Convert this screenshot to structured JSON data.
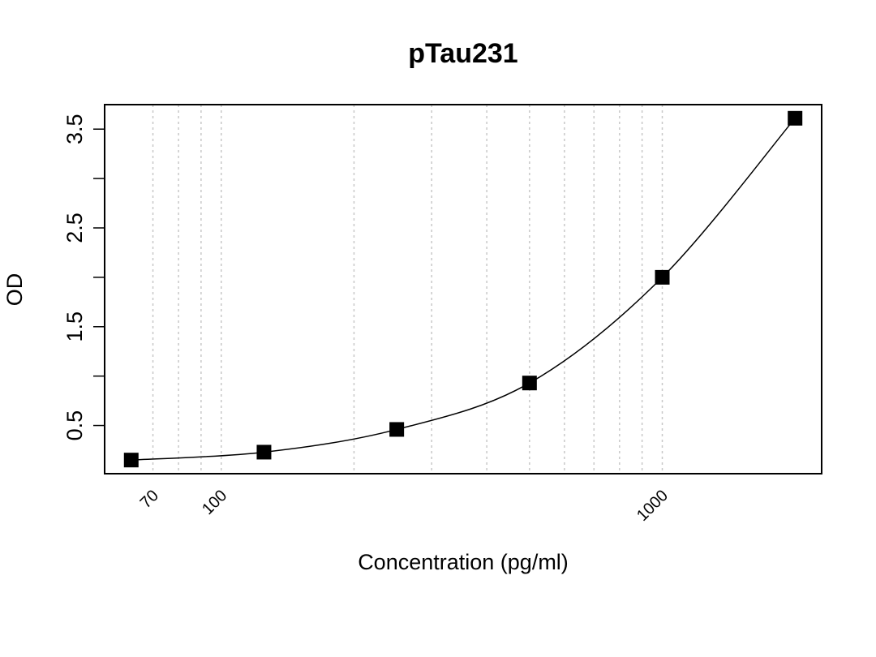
{
  "chart_data": {
    "type": "scatter",
    "title": "pTau231",
    "x_label": "Concentration (pg/ml)",
    "y_label": "OD",
    "x_scale": "log",
    "fit_line": true,
    "color": "#000000",
    "x": [
      62.5,
      125,
      250,
      500,
      1000,
      2000
    ],
    "values": [
      0.15,
      0.23,
      0.46,
      0.93,
      2.0,
      3.61
    ],
    "xlim": [
      54.4,
      2298
    ],
    "ylim": [
      0.012,
      3.748
    ],
    "xticks": [
      70,
      100,
      1000
    ],
    "xgrid": [
      70,
      80,
      90,
      100,
      200,
      300,
      400,
      500,
      600,
      700,
      800,
      900,
      1000
    ],
    "yticks": [
      0.5,
      1.5,
      2.5,
      3.5
    ],
    "y_minor_ticks": [
      1,
      2,
      3
    ]
  }
}
